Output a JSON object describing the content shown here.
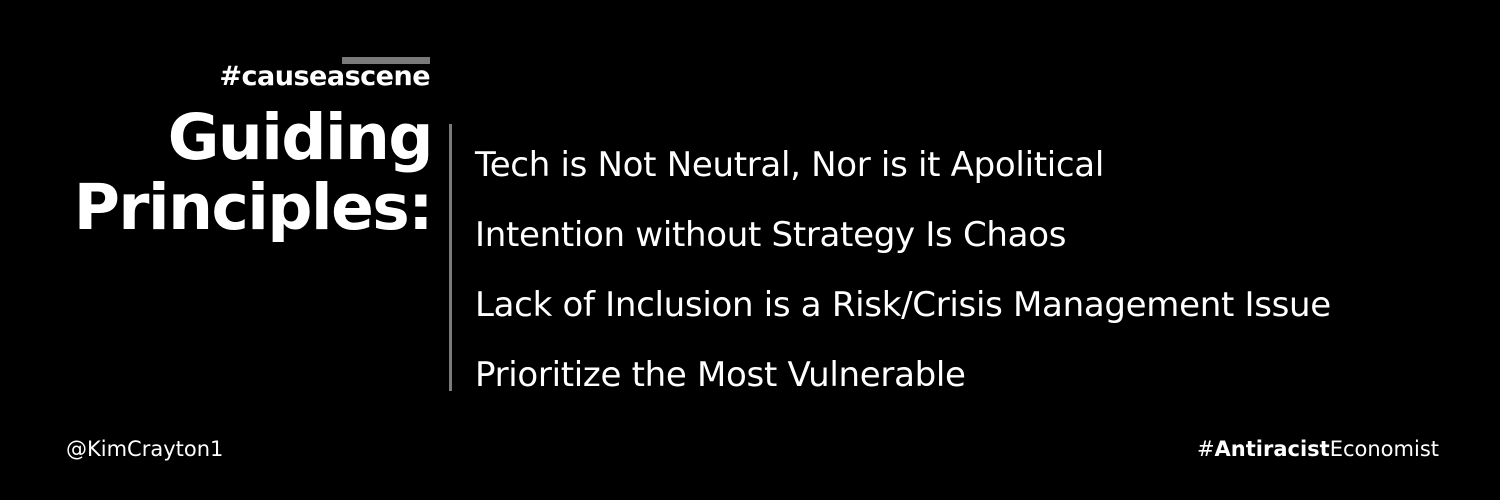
{
  "header": {
    "hashtag": "#causeascene",
    "title_line1": "Guiding",
    "title_line2": "Principles:"
  },
  "principles": [
    "Tech is Not Neutral, Nor is it Apolitical",
    "Intention without Strategy Is Chaos",
    "Lack of Inclusion is a Risk/Crisis Management Issue",
    "Prioritize the Most Vulnerable"
  ],
  "footer": {
    "handle": "@KimCrayton1",
    "tag_prefix": "#",
    "tag_bold": "Antiracist",
    "tag_suffix": "Economist"
  },
  "colors": {
    "background": "#000000",
    "text": "#ffffff",
    "accent_gray": "#7a7a7a"
  }
}
